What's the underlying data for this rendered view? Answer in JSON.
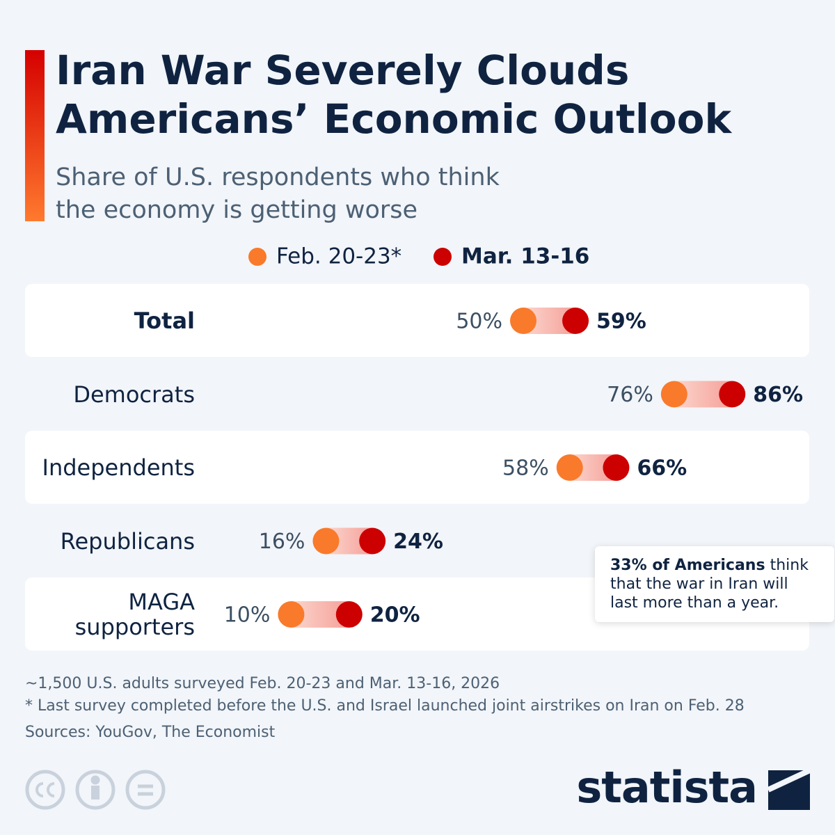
{
  "chart_data": {
    "type": "dumbbell",
    "title": "Iran War Severely Clouds Americans’ Economic Outlook",
    "subtitle": "Share of U.S. respondents who think the economy is getting worse",
    "categories": [
      "Total",
      "Democrats",
      "Independents",
      "Republicans",
      "MAGA supporters"
    ],
    "series": [
      {
        "name": "Feb. 20-23*",
        "color": "#f97a2b",
        "values": [
          50,
          76,
          58,
          16,
          10
        ],
        "value_labels": [
          "50%",
          "76%",
          "58%",
          "16%",
          "10%"
        ]
      },
      {
        "name": "Mar. 13-16",
        "color": "#cc0000",
        "values": [
          59,
          86,
          66,
          24,
          20
        ],
        "value_labels": [
          "59%",
          "86%",
          "66%",
          "24%",
          "20%"
        ]
      }
    ],
    "xlim": [
      0,
      100
    ],
    "annotation": {
      "bold": "33% of Americans",
      "text": "think that the war in Iran will last more than a year."
    },
    "notes": [
      "~1,500 U.S. adults surveyed Feb. 20-23 and Mar. 13-16, 2026",
      "* Last survey completed before the U.S. and Israel launched joint airstrikes on Iran on Feb. 28"
    ],
    "source": "Sources: YouGov, The Economist",
    "brand": "statista"
  }
}
